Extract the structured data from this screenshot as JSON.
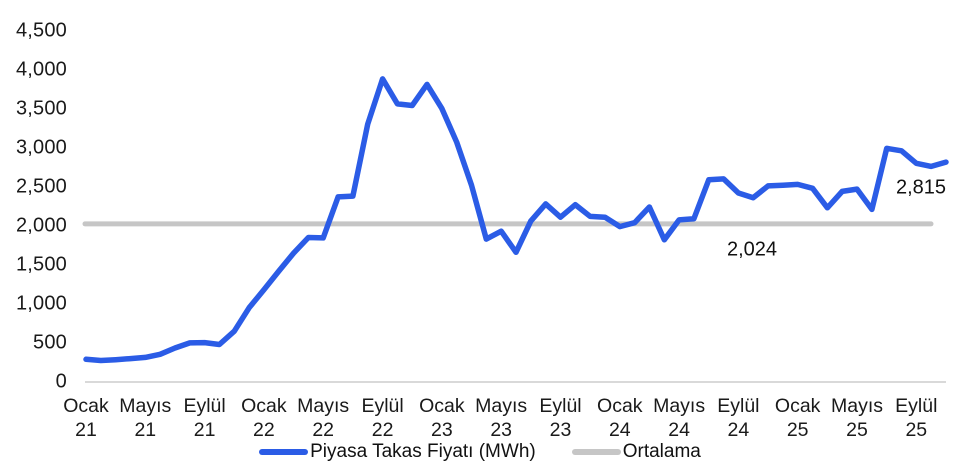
{
  "chart_data": {
    "type": "line",
    "title": "",
    "xlabel": "",
    "ylabel": "",
    "ylim": [
      0,
      4500
    ],
    "y_tick_step": 500,
    "y_tick_labels": [
      "0",
      "500",
      "1,000",
      "1,500",
      "2,000",
      "2,500",
      "3,000",
      "3,500",
      "4,000",
      "4,500"
    ],
    "x_tick_labels": [
      {
        "month": "Ocak",
        "year": "21"
      },
      {
        "month": "Mayıs",
        "year": "21"
      },
      {
        "month": "Eylül",
        "year": "21"
      },
      {
        "month": "Ocak",
        "year": "22"
      },
      {
        "month": "Mayıs",
        "year": "22"
      },
      {
        "month": "Eylül",
        "year": "22"
      },
      {
        "month": "Ocak",
        "year": "23"
      },
      {
        "month": "Mayıs",
        "year": "23"
      },
      {
        "month": "Eylül",
        "year": "23"
      },
      {
        "month": "Ocak",
        "year": "24"
      },
      {
        "month": "Mayıs",
        "year": "24"
      },
      {
        "month": "Eylül",
        "year": "24"
      },
      {
        "month": "Ocak",
        "year": "25"
      },
      {
        "month": "Mayıs",
        "year": "25"
      },
      {
        "month": "Eylül",
        "year": "25"
      }
    ],
    "x_tick_month_indices": [
      0,
      4,
      8,
      12,
      16,
      20,
      24,
      28,
      32,
      36,
      40,
      44,
      48,
      52,
      56
    ],
    "months": [
      "Ocak 21",
      "Şubat 21",
      "Mart 21",
      "Nisan 21",
      "Mayıs 21",
      "Haziran 21",
      "Temmuz 21",
      "Ağustos 21",
      "Eylül 21",
      "Ekim 21",
      "Kasım 21",
      "Aralık 21",
      "Ocak 22",
      "Şubat 22",
      "Mart 22",
      "Nisan 22",
      "Mayıs 22",
      "Haziran 22",
      "Temmuz 22",
      "Ağustos 22",
      "Eylül 22",
      "Ekim 22",
      "Kasım 22",
      "Aralık 22",
      "Ocak 23",
      "Şubat 23",
      "Mart 23",
      "Nisan 23",
      "Mayıs 23",
      "Haziran 23",
      "Temmuz 23",
      "Ağustos 23",
      "Eylül 23",
      "Ekim 23",
      "Kasım 23",
      "Aralık 23",
      "Ocak 24",
      "Şubat 24",
      "Mart 24",
      "Nisan 24",
      "Mayıs 24",
      "Haziran 24",
      "Temmuz 24",
      "Ağustos 24",
      "Eylül 24",
      "Ekim 24",
      "Kasım 24",
      "Aralık 24",
      "Ocak 25",
      "Şubat 25",
      "Mart 25",
      "Nisan 25",
      "Mayıs 25",
      "Haziran 25",
      "Temmuz 25",
      "Ağustos 25",
      "Eylül 25",
      "Ekim 25",
      "Kasım 25"
    ],
    "series": [
      {
        "name": "Piyasa Takas Fiyatı (MWh)",
        "color": "#2b5ce6",
        "values": [
          290,
          275,
          285,
          300,
          315,
          355,
          435,
          500,
          505,
          480,
          650,
          950,
          1180,
          1420,
          1650,
          1850,
          1845,
          2370,
          2380,
          3300,
          3880,
          3560,
          3540,
          3810,
          3500,
          3070,
          2520,
          1830,
          1930,
          1660,
          2060,
          2280,
          2110,
          2270,
          2120,
          2110,
          1990,
          2040,
          2240,
          1820,
          2075,
          2090,
          2590,
          2600,
          2420,
          2360,
          2510,
          2520,
          2530,
          2480,
          2230,
          2440,
          2470,
          2210,
          2990,
          2960,
          2800,
          2760,
          2815
        ]
      },
      {
        "name": "Ortalama",
        "color": "#c6c6c6",
        "average_value": 2024
      }
    ],
    "annotations": [
      {
        "text": "2,815",
        "refers_to": "last-value"
      },
      {
        "text": "2,024",
        "refers_to": "average-value"
      }
    ],
    "legend": {
      "position": "bottom-center",
      "items": [
        {
          "label": "Piyasa Takas Fiyatı (MWh)",
          "color": "#2b5ce6"
        },
        {
          "label": "Ortalama",
          "color": "#c6c6c6"
        }
      ]
    },
    "grid": "off",
    "axis_line_color": "#d9d9d9",
    "text_color": "#1a1a1a",
    "background_color": "#ffffff"
  }
}
